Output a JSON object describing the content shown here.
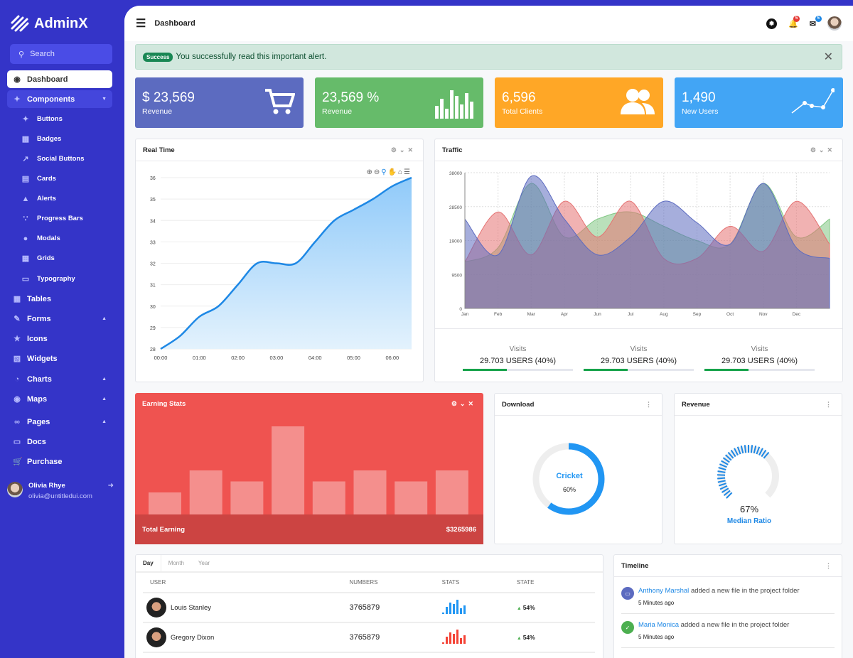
{
  "brand": "AdminX",
  "search": {
    "placeholder": "Search"
  },
  "sidebar": {
    "items": [
      {
        "label": "Dashboard",
        "icon": "dashboard-icon",
        "state": "active"
      },
      {
        "label": "Components",
        "icon": "puzzle-icon",
        "state": "open",
        "caret": "down"
      },
      {
        "label": "Buttons",
        "icon": "puzzle-icon",
        "sub": true
      },
      {
        "label": "Badges",
        "icon": "badge-icon",
        "sub": true
      },
      {
        "label": "Social Buttons",
        "icon": "share-icon",
        "sub": true
      },
      {
        "label": "Cards",
        "icon": "card-icon",
        "sub": true
      },
      {
        "label": "Alerts",
        "icon": "warning-icon",
        "sub": true
      },
      {
        "label": "Progress Bars",
        "icon": "spinner-icon",
        "sub": true
      },
      {
        "label": "Modals",
        "icon": "fire-icon",
        "sub": true
      },
      {
        "label": "Grids",
        "icon": "grid-icon",
        "sub": true
      },
      {
        "label": "Typography",
        "icon": "file-word-icon",
        "sub": true
      },
      {
        "label": "Tables",
        "icon": "table-icon"
      },
      {
        "label": "Forms",
        "icon": "edit-icon",
        "caret": "up"
      },
      {
        "label": "Icons",
        "icon": "star-icon"
      },
      {
        "label": "Widgets",
        "icon": "calculator-icon"
      },
      {
        "label": "Charts",
        "icon": "pie-chart-icon",
        "caret": "up"
      },
      {
        "label": "Maps",
        "icon": "map-pin-icon",
        "caret": "up"
      },
      {
        "label": "Pages",
        "icon": "paperclip-icon",
        "caret": "up"
      },
      {
        "label": "Docs",
        "icon": "document-icon"
      },
      {
        "label": "Purchase",
        "icon": "cart-icon"
      }
    ]
  },
  "user": {
    "name": "Olivia Rhye",
    "email": "olivia@untitledui.com"
  },
  "header": {
    "title": "Dashboard",
    "notifications": "5",
    "messages": "5"
  },
  "alert": {
    "badge": "Success",
    "text": "You successfully read this important alert."
  },
  "stats": [
    {
      "value": "$ 23,569",
      "label": "Revenue",
      "color": "#5c6bc0",
      "icon": "cart-icon"
    },
    {
      "value": "23,569 %",
      "label": "Revenue",
      "color": "#66bb6a",
      "icon": "bar-chart-icon"
    },
    {
      "value": "6,596",
      "label": "Total Clients",
      "color": "#ffa726",
      "icon": "users-icon"
    },
    {
      "value": "1,490",
      "label": "New Users",
      "color": "#42a5f5",
      "icon": "line-chart-icon"
    }
  ],
  "realtime": {
    "title": "Real Time"
  },
  "traffic": {
    "title": "Traffic",
    "visits": [
      {
        "label": "Visits",
        "value": "29.703 USERS (40%)",
        "progress": 40
      },
      {
        "label": "Visits",
        "value": "29.703 USERS (40%)",
        "progress": 40
      },
      {
        "label": "Visits",
        "value": "29.703 USERS (40%)",
        "progress": 40
      }
    ]
  },
  "earning": {
    "title": "Earning Stats",
    "total_label": "Total Earning",
    "total": "$3265986"
  },
  "download": {
    "title": "Download",
    "label": "Cricket",
    "percent": "60%",
    "value": 60
  },
  "revenue": {
    "title": "Revenue",
    "percent": "67%",
    "label": "Median Ratio",
    "value": 67
  },
  "table": {
    "tabs": [
      "Day",
      "Month",
      "Year"
    ],
    "active_tab": "Day",
    "headers": [
      "USER",
      "NUMBERS",
      "STATS",
      "STATE"
    ],
    "rows": [
      {
        "name": "Louis Stanley",
        "number": "3765879",
        "state": "54%",
        "spark_color": "#2196f3",
        "spark": [
          1,
          5,
          8,
          7,
          10,
          4,
          6
        ]
      },
      {
        "name": "Gregory Dixon",
        "number": "3765879",
        "state": "54%",
        "spark_color": "#f44336",
        "spark": [
          1,
          5,
          8,
          7,
          10,
          4,
          6
        ]
      }
    ]
  },
  "timeline": {
    "title": "Timeline",
    "items": [
      {
        "name": "Anthony Marshal",
        "text": "added a new file in the project folder",
        "time": "5 Minutes ago",
        "color": "#5c6bc0",
        "icon": "file-icon"
      },
      {
        "name": "Maria Monica",
        "text": "added a new file in the project folder",
        "time": "5 Minutes ago",
        "color": "#4caf50",
        "icon": "check-icon"
      }
    ]
  },
  "chart_data": [
    {
      "type": "area",
      "title": "Real Time",
      "x": [
        "00:00",
        "00:30",
        "01:00",
        "01:30",
        "02:00",
        "02:30",
        "03:00",
        "03:30",
        "04:00",
        "04:30",
        "05:00",
        "05:30",
        "06:00",
        "06:30"
      ],
      "xticks": [
        "00:00",
        "01:00",
        "02:00",
        "03:00",
        "04:00",
        "05:00",
        "06:00"
      ],
      "values": [
        28,
        28.6,
        29.5,
        30,
        31,
        32,
        32,
        32,
        33,
        34,
        34.5,
        35,
        35.6,
        36
      ],
      "ylim": [
        28,
        36
      ],
      "yticks": [
        28,
        29,
        30,
        31,
        32,
        33,
        34,
        35,
        36
      ],
      "color": "#1e88e5",
      "grid": true
    },
    {
      "type": "area",
      "title": "Traffic",
      "xticks": [
        "Jan",
        "Feb",
        "Mar",
        "Apr",
        "Jun",
        "Jul",
        "Aug",
        "Sep",
        "Oct",
        "Nov",
        "Dec"
      ],
      "ylim": [
        0,
        38000
      ],
      "yticks": [
        0,
        9500,
        19000,
        28500,
        38000
      ],
      "grid": true,
      "series": [
        {
          "color": "#81c784",
          "values": [
            13000,
            17000,
            35000,
            20000,
            25000,
            27000,
            23000,
            19000,
            18000,
            35000,
            20000,
            25000
          ]
        },
        {
          "color": "#e57373",
          "values": [
            13000,
            27000,
            15000,
            30000,
            20000,
            30000,
            14000,
            14000,
            23000,
            16000,
            30000,
            18000
          ]
        },
        {
          "color": "#5c6bc0",
          "values": [
            25000,
            15000,
            37000,
            25000,
            15000,
            20000,
            30000,
            24000,
            18000,
            35000,
            17000,
            14000
          ]
        }
      ]
    },
    {
      "type": "bar",
      "title": "Earning Stats",
      "values": [
        2,
        4,
        3,
        8,
        3,
        4,
        3,
        4
      ]
    }
  ]
}
